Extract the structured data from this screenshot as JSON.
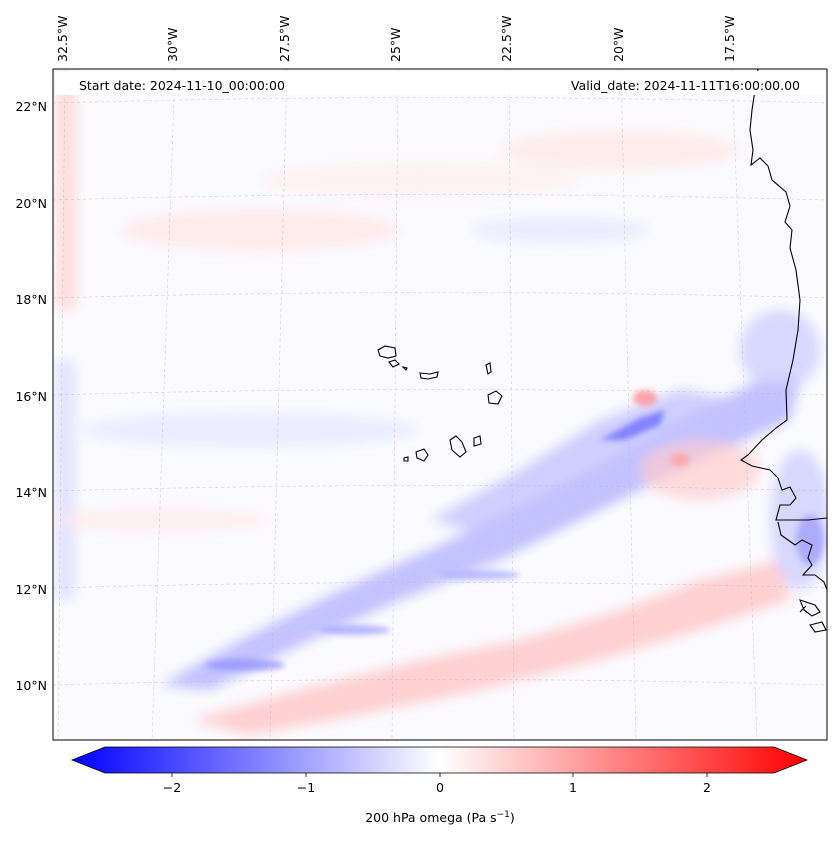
{
  "header": {
    "start_date": "Start date: 2024-11-10_00:00:00",
    "valid_date": "Valid_date: 2024-11-11T16:00:00.00"
  },
  "lon_labels": [
    "32.5°W",
    "30°W",
    "27.5°W",
    "25°W",
    "22.5°W",
    "20°W",
    "17.5°W"
  ],
  "lat_labels": [
    "22°N",
    "20°N",
    "18°N",
    "16°N",
    "14°N",
    "12°N",
    "10°N"
  ],
  "colorbar": {
    "ticks": [
      "−2",
      "−1",
      "0",
      "1",
      "2"
    ],
    "label": "200 hPa omega (Pa s",
    "label_exp": "−1",
    "label_close": ")",
    "range": [
      -2.6,
      2.6
    ],
    "colors": {
      "negative": "#0000ff",
      "zero": "#ffffff",
      "positive": "#ff0000"
    }
  },
  "map": {
    "field": "200 hPa omega",
    "units": "Pa s⁻¹",
    "gridlines": true,
    "coastlines": true
  }
}
